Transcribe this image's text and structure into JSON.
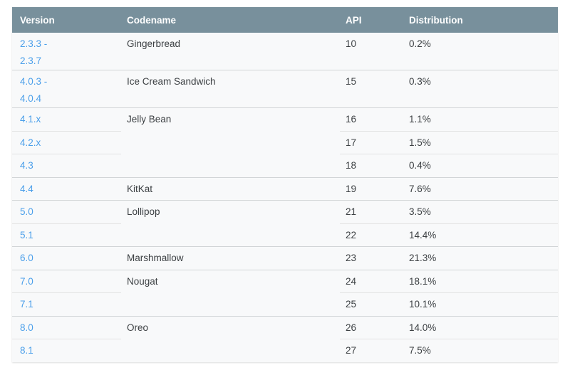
{
  "table": {
    "columns": [
      {
        "label": "Version"
      },
      {
        "label": "Codename"
      },
      {
        "label": "API"
      },
      {
        "label": "Distribution"
      }
    ],
    "groups": [
      {
        "codename": "Gingerbread",
        "rows": [
          {
            "version": "2.3.3 -\n2.3.7",
            "api": "10",
            "distribution": "0.2%"
          }
        ]
      },
      {
        "codename": "Ice Cream Sandwich",
        "rows": [
          {
            "version": "4.0.3 -\n4.0.4",
            "api": "15",
            "distribution": "0.3%"
          }
        ]
      },
      {
        "codename": "Jelly Bean",
        "rows": [
          {
            "version": "4.1.x",
            "api": "16",
            "distribution": "1.1%"
          },
          {
            "version": "4.2.x",
            "api": "17",
            "distribution": "1.5%"
          },
          {
            "version": "4.3",
            "api": "18",
            "distribution": "0.4%"
          }
        ]
      },
      {
        "codename": "KitKat",
        "rows": [
          {
            "version": "4.4",
            "api": "19",
            "distribution": "7.6%"
          }
        ]
      },
      {
        "codename": "Lollipop",
        "rows": [
          {
            "version": "5.0",
            "api": "21",
            "distribution": "3.5%"
          },
          {
            "version": "5.1",
            "api": "22",
            "distribution": "14.4%"
          }
        ]
      },
      {
        "codename": "Marshmallow",
        "rows": [
          {
            "version": "6.0",
            "api": "23",
            "distribution": "21.3%"
          }
        ]
      },
      {
        "codename": "Nougat",
        "rows": [
          {
            "version": "7.0",
            "api": "24",
            "distribution": "18.1%"
          },
          {
            "version": "7.1",
            "api": "25",
            "distribution": "10.1%"
          }
        ]
      },
      {
        "codename": "Oreo",
        "rows": [
          {
            "version": "8.0",
            "api": "26",
            "distribution": "14.0%"
          },
          {
            "version": "8.1",
            "api": "27",
            "distribution": "7.5%"
          }
        ]
      }
    ],
    "colors": {
      "header_bg": "#78909c",
      "header_text": "#ffffff",
      "row_bg": "#f8f9fa",
      "link": "#4b9fea",
      "text": "#3c4043",
      "row_divider": "#e3e3e3",
      "group_divider": "#d2d5d7"
    }
  }
}
